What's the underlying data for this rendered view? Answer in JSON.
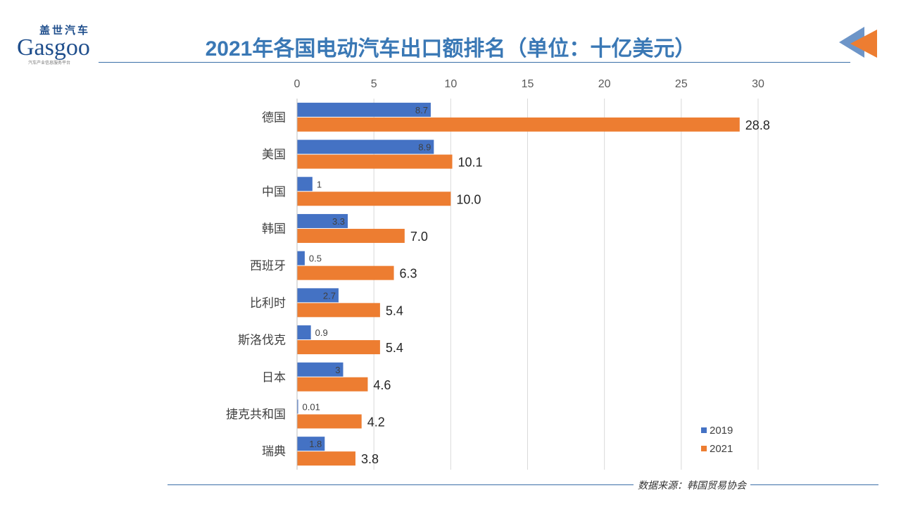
{
  "header": {
    "title": "2021年各国电动汽车出口额排名（单位：十亿美元）"
  },
  "logo": {
    "cn": "盖世汽车",
    "en": "Gasgoo",
    "sub": "汽车产业信息服务平台"
  },
  "footer": {
    "source": "数据来源：韩国贸易协会"
  },
  "chart_data": {
    "type": "bar",
    "orientation": "horizontal",
    "categories": [
      "德国",
      "美国",
      "中国",
      "韩国",
      "西班牙",
      "比利时",
      "斯洛伐克",
      "日本",
      "捷克共和国",
      "瑞典"
    ],
    "series": [
      {
        "name": "2019",
        "color": "#4472c4",
        "values": [
          8.7,
          8.9,
          1,
          3.3,
          0.5,
          2.7,
          0.9,
          3,
          0.01,
          1.8
        ],
        "labels": [
          "8.7",
          "8.9",
          "1",
          "3.3",
          "0.5",
          "2.7",
          "0.9",
          "3",
          "0.01",
          "1.8"
        ]
      },
      {
        "name": "2021",
        "color": "#ed7d31",
        "values": [
          28.8,
          10.1,
          10.0,
          7.0,
          6.3,
          5.4,
          5.4,
          4.6,
          4.2,
          3.8
        ],
        "labels": [
          "28.8",
          "10.1",
          "10.0",
          "7.0",
          "6.3",
          "5.4",
          "5.4",
          "4.6",
          "4.2",
          "3.8"
        ]
      }
    ],
    "xlim": [
      0,
      30
    ],
    "xticks": [
      "0",
      "5",
      "10",
      "15",
      "20",
      "25",
      "30"
    ],
    "axis_position": "top",
    "grid": true,
    "legend": "bottom-right"
  }
}
